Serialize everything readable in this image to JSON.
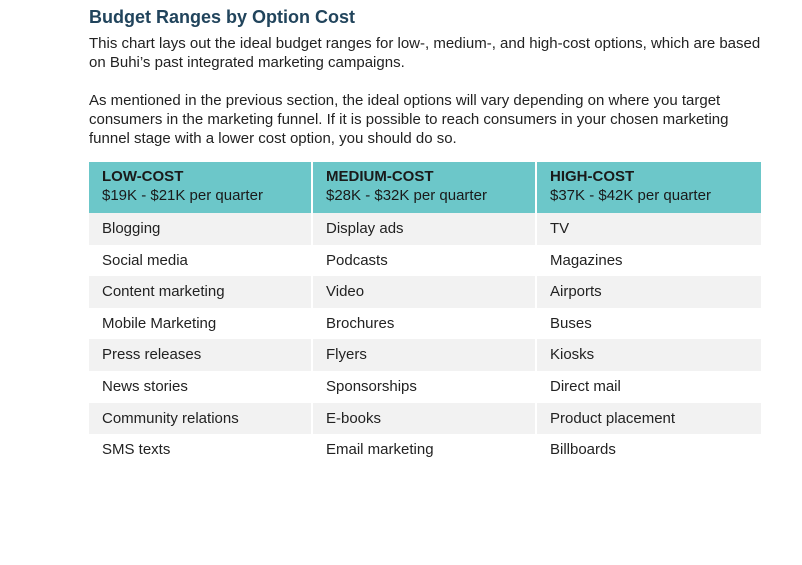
{
  "title": "Budget Ranges by Option Cost",
  "paragraphs": [
    "This chart lays out the ideal budget ranges for low-, medium-, and high-cost options, which are based on Buhi’s past integrated marketing campaigns.",
    "As mentioned in the previous section, the ideal options will vary depending on where you target consumers in the marketing funnel. If it is possible to reach consumers in your chosen marketing funnel stage with a lower cost option, you should do so."
  ],
  "table": {
    "header_color": "#6cc7c9",
    "columns": [
      {
        "name": "LOW-COST",
        "range": "$19K - $21K per quarter"
      },
      {
        "name": "MEDIUM-COST",
        "range": "$28K - $32K per quarter"
      },
      {
        "name": "HIGH-COST",
        "range": "$37K - $42K per quarter"
      }
    ],
    "rows": [
      [
        "Blogging",
        "Display ads",
        "TV"
      ],
      [
        "Social media",
        "Podcasts",
        "Magazines"
      ],
      [
        "Content marketing",
        "Video",
        "Airports"
      ],
      [
        "Mobile Marketing",
        "Brochures",
        "Buses"
      ],
      [
        "Press releases",
        "Flyers",
        "Kiosks"
      ],
      [
        "News stories",
        "Sponsorships",
        "Direct mail"
      ],
      [
        "Community relations",
        "E-books",
        "Product placement"
      ],
      [
        "SMS texts",
        "Email marketing",
        "Billboards"
      ]
    ]
  }
}
